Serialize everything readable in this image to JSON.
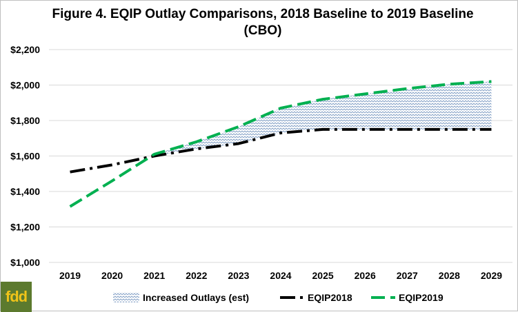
{
  "chart_data": {
    "type": "line",
    "title": "Figure 4. EQIP Outlay Comparisons, 2018 Baseline to 2019 Baseline (CBO)",
    "xlabel": "",
    "ylabel": "",
    "categories": [
      "2019",
      "2020",
      "2021",
      "2022",
      "2023",
      "2024",
      "2025",
      "2026",
      "2027",
      "2028",
      "2029"
    ],
    "ylim": [
      1000,
      2200
    ],
    "yticks": [
      1000,
      1200,
      1400,
      1600,
      1800,
      2000,
      2200
    ],
    "ytick_labels": [
      "$1,000",
      "$1,200",
      "$1,400",
      "$1,600",
      "$1,800",
      "$2,000",
      "$2,200"
    ],
    "grid": true,
    "legend_position": "bottom",
    "series": [
      {
        "name": "EQIP2018",
        "color": "#000000",
        "style": "dash-dot",
        "values": [
          1510,
          1550,
          1600,
          1640,
          1670,
          1730,
          1750,
          1750,
          1750,
          1750,
          1750
        ]
      },
      {
        "name": "EQIP2019",
        "color": "#00b050",
        "style": "dashed",
        "values": [
          1315,
          1460,
          1610,
          1680,
          1765,
          1870,
          1920,
          1950,
          1980,
          2005,
          2020
        ]
      }
    ],
    "area": {
      "name": "Increased Outlays (est)",
      "from_category": "2021",
      "lower_series": "EQIP2018",
      "upper_series": "EQIP2019",
      "color": "#8fa9c9"
    }
  },
  "logo": {
    "text": "fdd"
  }
}
